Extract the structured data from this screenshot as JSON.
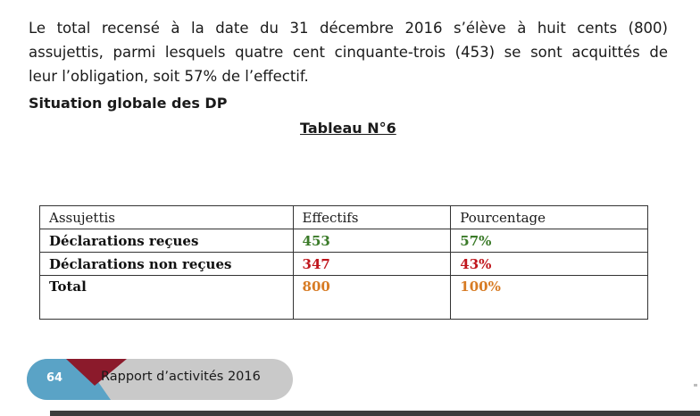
{
  "paragraph": {
    "line1": "Le total recensé à la date du 31 décembre 2016 s’élève à huit cents (800)",
    "line2": "assujettis, parmi lesquels quatre cent cinquante-trois (453) se sont acquittés de",
    "line3": "leur l’obligation,  soit 57% de l’effectif."
  },
  "section_heading": "Situation globale des DP",
  "table_title": "Tableau N°6",
  "table": {
    "headers": [
      "Assujettis",
      "Effectifs",
      "Pourcentage"
    ],
    "rows": [
      {
        "label": "Déclarations reçues",
        "effectifs": "453",
        "pourcentage": "57%"
      },
      {
        "label": "Déclarations non reçues",
        "effectifs": "347",
        "pourcentage": "43%"
      },
      {
        "label": "Total",
        "effectifs": "800",
        "pourcentage": "100%"
      }
    ]
  },
  "colors": {
    "received": "#3a7a28",
    "not_received": "#c0151c",
    "total": "#d77b24",
    "footer_blue": "#5aa3c6",
    "footer_red": "#8b1a2b",
    "footer_bg": "#c9c9c9"
  },
  "footer": {
    "page_number": "64",
    "title": "Rapport d’activités 2016"
  }
}
